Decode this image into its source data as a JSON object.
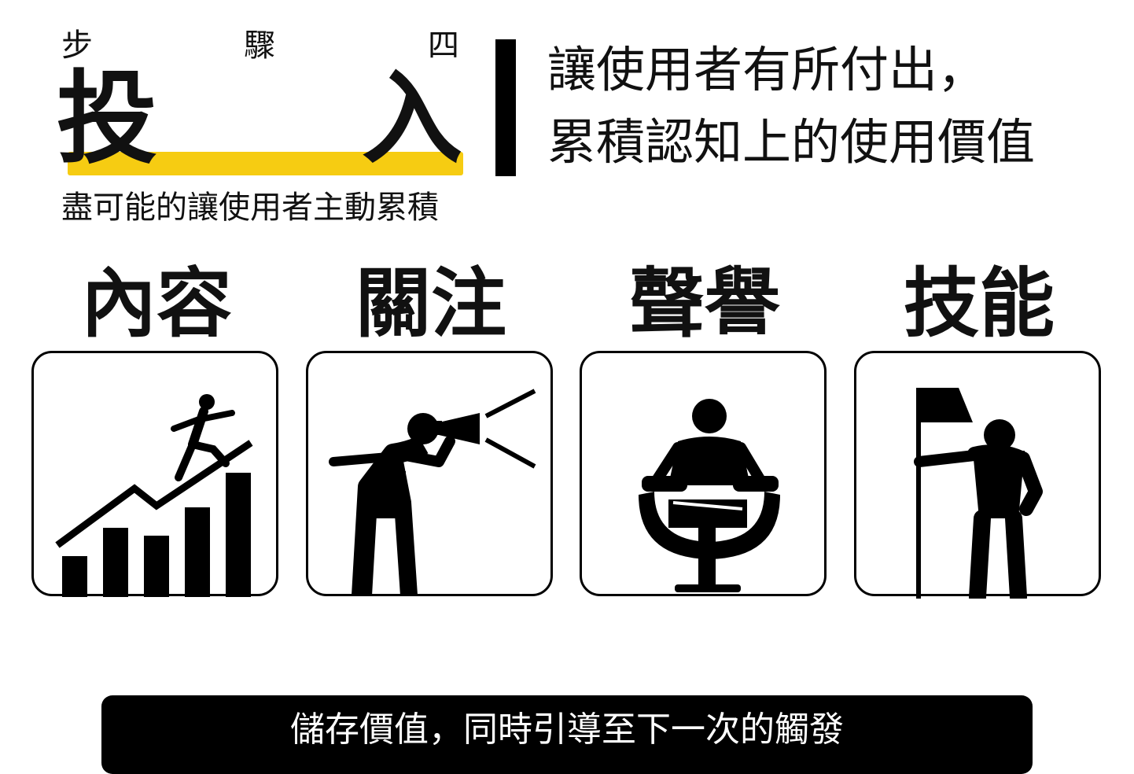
{
  "header": {
    "step_chars": [
      "步",
      "驟",
      "四"
    ],
    "title_chars": [
      "投",
      "入"
    ],
    "subtitle": "盡可能的讓使用者主動累積",
    "accent_color": "#f6cc12"
  },
  "tagline": {
    "line1": "讓使用者有所付出，",
    "line2": "累積認知上的使用價值"
  },
  "categories": [
    {
      "label": "內容",
      "icon": "stairs-growth-chart-icon"
    },
    {
      "label": "關注",
      "icon": "megaphone-shouting-icon"
    },
    {
      "label": "聲譽",
      "icon": "person-seated-armchair-icon"
    },
    {
      "label": "技能",
      "icon": "person-holding-flag-icon"
    }
  ],
  "footer": {
    "text": "儲存價值，同時引導至下一次的觸發"
  }
}
